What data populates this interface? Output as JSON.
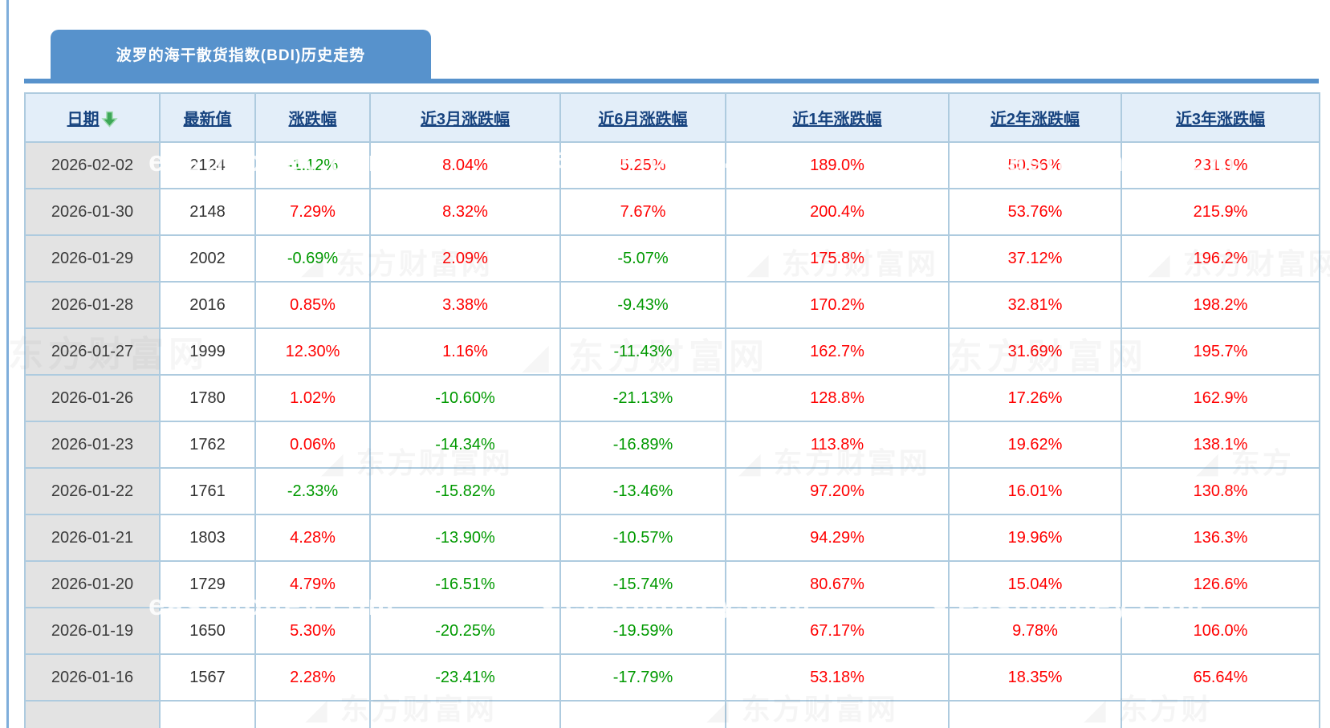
{
  "title_tab": "波罗的海干散货指数(BDI)历史走势",
  "colors": {
    "tab_blue": "#5792CC",
    "header_bg": "#E3EEF9",
    "header_link": "#17437F",
    "table_border": "#AECBDF",
    "date_cell_bg": "#E3E3E3",
    "alt_row_bg": "#F0F1F1",
    "up_red": "#FF0000",
    "down_green": "#009900",
    "sort_arrow_green": "#3DA757"
  },
  "table": {
    "columns": [
      "日期",
      "最新值",
      "涨跌幅",
      "近3月涨跌幅",
      "近6月涨跌幅",
      "近1年涨跌幅",
      "近2年涨跌幅",
      "近3年涨跌幅"
    ],
    "sorted_column": "日期",
    "sort_direction": "desc",
    "rows": [
      [
        "2026-02-02",
        "2124",
        "-1.12%",
        "8.04%",
        "5.25%",
        "189.0%",
        "50.96%",
        "231.9%"
      ],
      [
        "2026-01-30",
        "2148",
        "7.29%",
        "8.32%",
        "7.67%",
        "200.4%",
        "53.76%",
        "215.9%"
      ],
      [
        "2026-01-29",
        "2002",
        "-0.69%",
        "2.09%",
        "-5.07%",
        "175.8%",
        "37.12%",
        "196.2%"
      ],
      [
        "2026-01-28",
        "2016",
        "0.85%",
        "3.38%",
        "-9.43%",
        "170.2%",
        "32.81%",
        "198.2%"
      ],
      [
        "2026-01-27",
        "1999",
        "12.30%",
        "1.16%",
        "-11.43%",
        "162.7%",
        "31.69%",
        "195.7%"
      ],
      [
        "2026-01-26",
        "1780",
        "1.02%",
        "-10.60%",
        "-21.13%",
        "128.8%",
        "17.26%",
        "162.9%"
      ],
      [
        "2026-01-23",
        "1762",
        "0.06%",
        "-14.34%",
        "-16.89%",
        "113.8%",
        "19.62%",
        "138.1%"
      ],
      [
        "2026-01-22",
        "1761",
        "-2.33%",
        "-15.82%",
        "-13.46%",
        "97.20%",
        "16.01%",
        "130.8%"
      ],
      [
        "2026-01-21",
        "1803",
        "4.28%",
        "-13.90%",
        "-10.57%",
        "94.29%",
        "19.96%",
        "136.3%"
      ],
      [
        "2026-01-20",
        "1729",
        "4.79%",
        "-16.51%",
        "-15.74%",
        "80.67%",
        "15.04%",
        "126.6%"
      ],
      [
        "2026-01-19",
        "1650",
        "5.30%",
        "-20.25%",
        "-19.59%",
        "67.17%",
        "9.78%",
        "106.0%"
      ],
      [
        "2026-01-16",
        "1567",
        "2.28%",
        "-23.41%",
        "-17.79%",
        "53.18%",
        "18.35%",
        "65.64%"
      ]
    ]
  },
  "watermarks": {
    "site_cn": "东方财富网",
    "site_en": "eastmoney.com"
  }
}
